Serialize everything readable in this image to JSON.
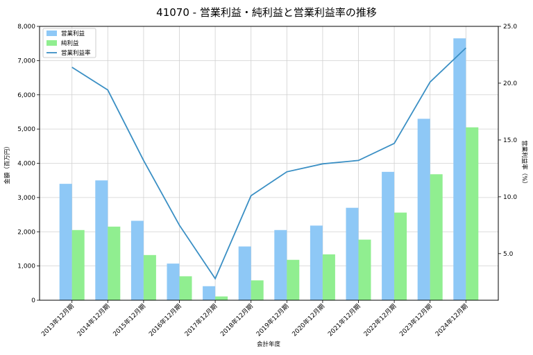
{
  "chart_data": {
    "type": "bar",
    "title": "41070 - 営業利益・純利益と営業利益率の推移",
    "xlabel": "会計年度",
    "ylabel": "金額（百万円）",
    "y2label": "営業利益率（%）",
    "categories": [
      "2013年12月期",
      "2014年12月期",
      "2015年12月期",
      "2016年12月期",
      "2017年12月期",
      "2018年12月期",
      "2019年12月期",
      "2020年12月期",
      "2021年12月期",
      "2022年12月期",
      "2023年12月期",
      "2024年12月期"
    ],
    "series": [
      {
        "name": "営業利益",
        "type": "bar",
        "axis": "left",
        "color": "#8ec8f6",
        "values": [
          3400,
          3500,
          2320,
          1070,
          410,
          1570,
          2050,
          2180,
          2700,
          3750,
          5300,
          7650
        ]
      },
      {
        "name": "純利益",
        "type": "bar",
        "axis": "left",
        "color": "#90ee90",
        "values": [
          2050,
          2150,
          1320,
          700,
          110,
          580,
          1180,
          1340,
          1770,
          2560,
          3680,
          5050
        ]
      },
      {
        "name": "営業利益率",
        "type": "line",
        "axis": "right",
        "color": "#3a8fc4",
        "values": [
          21.4,
          19.4,
          13.2,
          7.5,
          2.8,
          10.1,
          12.2,
          12.9,
          13.2,
          14.7,
          20.1,
          23.1
        ]
      }
    ],
    "ylim": [
      0,
      8000
    ],
    "yticks": [
      0,
      1000,
      2000,
      3000,
      4000,
      5000,
      6000,
      7000,
      8000
    ],
    "ytick_labels": [
      "0",
      "1,000",
      "2,000",
      "3,000",
      "4,000",
      "5,000",
      "6,000",
      "7,000",
      "8,000"
    ],
    "y2lim": [
      0.9,
      25.0
    ],
    "y2ticks": [
      5.0,
      10.0,
      15.0,
      20.0,
      25.0
    ],
    "y2tick_labels": [
      "5.0",
      "10.0",
      "15.0",
      "20.0",
      "25.0"
    ],
    "grid": true,
    "legend_position": "top-left"
  }
}
